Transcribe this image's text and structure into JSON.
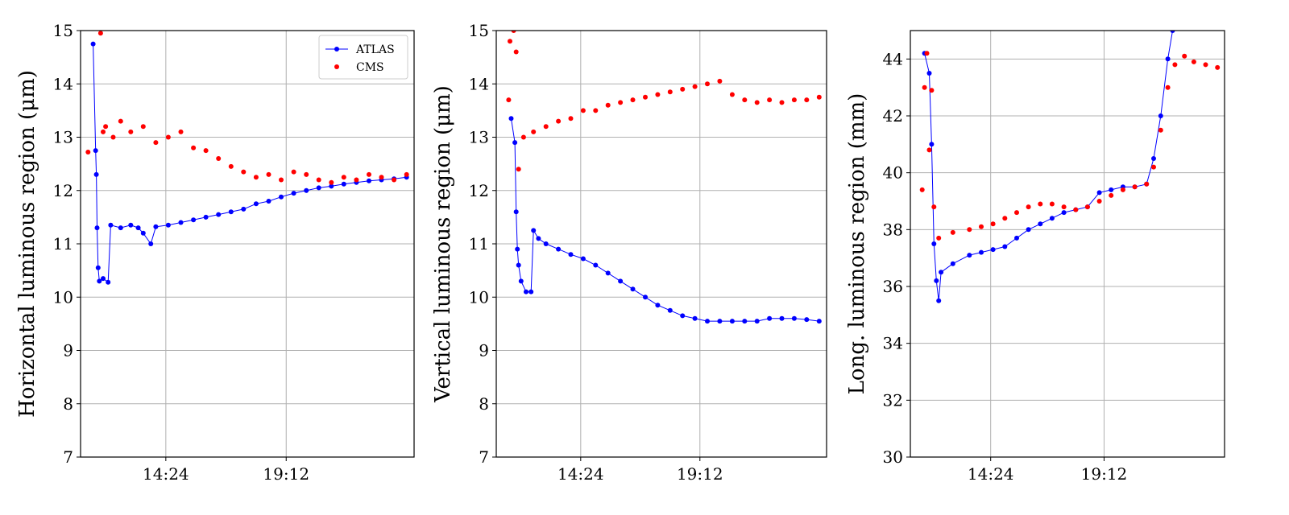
{
  "chart_data": [
    {
      "type": "scatter",
      "xlabel": "",
      "ylabel": "Horizontal luminous region (μm)",
      "ylim": [
        7,
        15
      ],
      "yticks": [
        "7",
        "8",
        "9",
        "10",
        "11",
        "12",
        "13",
        "14",
        "15"
      ],
      "xlim_hours": [
        11.0,
        24.3
      ],
      "xticks": [
        "14:24",
        "19:12"
      ],
      "grid": true,
      "legend_placement": "top-right",
      "series": [
        {
          "name": "ATLAS",
          "color": "#0000ff",
          "style": "line-with-markers",
          "points": [
            [
              11.5,
              14.75
            ],
            [
              11.6,
              12.75
            ],
            [
              11.63,
              12.3
            ],
            [
              11.66,
              11.3
            ],
            [
              11.7,
              10.55
            ],
            [
              11.75,
              10.3
            ],
            [
              11.9,
              10.35
            ],
            [
              12.1,
              10.28
            ],
            [
              12.2,
              11.35
            ],
            [
              12.6,
              11.3
            ],
            [
              13.0,
              11.35
            ],
            [
              13.3,
              11.3
            ],
            [
              13.5,
              11.2
            ],
            [
              13.8,
              11.0
            ],
            [
              14.0,
              11.32
            ],
            [
              14.5,
              11.35
            ],
            [
              15.0,
              11.4
            ],
            [
              15.5,
              11.45
            ],
            [
              16.0,
              11.5
            ],
            [
              16.5,
              11.55
            ],
            [
              17.0,
              11.6
            ],
            [
              17.5,
              11.65
            ],
            [
              18.0,
              11.75
            ],
            [
              18.5,
              11.8
            ],
            [
              19.0,
              11.88
            ],
            [
              19.5,
              11.95
            ],
            [
              20.0,
              12.0
            ],
            [
              20.5,
              12.05
            ],
            [
              21.0,
              12.08
            ],
            [
              21.5,
              12.12
            ],
            [
              22.0,
              12.15
            ],
            [
              22.5,
              12.18
            ],
            [
              23.0,
              12.2
            ],
            [
              23.5,
              12.22
            ],
            [
              24.0,
              12.25
            ]
          ]
        },
        {
          "name": "CMS",
          "color": "#ff0000",
          "style": "markers",
          "points": [
            [
              11.3,
              12.72
            ],
            [
              11.8,
              14.95
            ],
            [
              11.9,
              13.1
            ],
            [
              12.0,
              13.2
            ],
            [
              12.3,
              13.0
            ],
            [
              12.6,
              13.3
            ],
            [
              13.0,
              13.1
            ],
            [
              13.5,
              13.2
            ],
            [
              14.0,
              12.9
            ],
            [
              14.5,
              13.0
            ],
            [
              15.0,
              13.1
            ],
            [
              15.5,
              12.8
            ],
            [
              16.0,
              12.75
            ],
            [
              16.5,
              12.6
            ],
            [
              17.0,
              12.45
            ],
            [
              17.5,
              12.35
            ],
            [
              18.0,
              12.25
            ],
            [
              18.5,
              12.3
            ],
            [
              19.0,
              12.2
            ],
            [
              19.5,
              12.35
            ],
            [
              20.0,
              12.3
            ],
            [
              20.5,
              12.2
            ],
            [
              21.0,
              12.15
            ],
            [
              21.5,
              12.25
            ],
            [
              22.0,
              12.2
            ],
            [
              22.5,
              12.3
            ],
            [
              23.0,
              12.25
            ],
            [
              23.5,
              12.2
            ],
            [
              24.0,
              12.3
            ]
          ]
        }
      ]
    },
    {
      "type": "scatter",
      "xlabel": "",
      "ylabel": "Vertical luminous region (μm)",
      "ylim": [
        7,
        15
      ],
      "yticks": [
        "7",
        "8",
        "9",
        "10",
        "11",
        "12",
        "13",
        "14",
        "15"
      ],
      "xlim_hours": [
        11.0,
        24.3
      ],
      "xticks": [
        "14:24",
        "19:12"
      ],
      "grid": true,
      "series": [
        {
          "name": "ATLAS",
          "color": "#0000ff",
          "style": "line-with-markers",
          "points": [
            [
              11.6,
              13.35
            ],
            [
              11.75,
              12.9
            ],
            [
              11.8,
              11.6
            ],
            [
              11.85,
              10.9
            ],
            [
              11.9,
              10.6
            ],
            [
              12.0,
              10.3
            ],
            [
              12.2,
              10.1
            ],
            [
              12.4,
              10.1
            ],
            [
              12.5,
              11.25
            ],
            [
              12.7,
              11.1
            ],
            [
              13.0,
              11.0
            ],
            [
              13.5,
              10.9
            ],
            [
              14.0,
              10.8
            ],
            [
              14.5,
              10.72
            ],
            [
              15.0,
              10.6
            ],
            [
              15.5,
              10.45
            ],
            [
              16.0,
              10.3
            ],
            [
              16.5,
              10.15
            ],
            [
              17.0,
              10.0
            ],
            [
              17.5,
              9.85
            ],
            [
              18.0,
              9.75
            ],
            [
              18.5,
              9.65
            ],
            [
              19.0,
              9.6
            ],
            [
              19.5,
              9.55
            ],
            [
              20.0,
              9.55
            ],
            [
              20.5,
              9.55
            ],
            [
              21.0,
              9.55
            ],
            [
              21.5,
              9.55
            ],
            [
              22.0,
              9.6
            ],
            [
              22.5,
              9.6
            ],
            [
              23.0,
              9.6
            ],
            [
              23.5,
              9.58
            ],
            [
              24.0,
              9.55
            ]
          ]
        },
        {
          "name": "CMS",
          "color": "#ff0000",
          "style": "markers",
          "points": [
            [
              11.5,
              13.7
            ],
            [
              11.55,
              14.8
            ],
            [
              11.7,
              15.0
            ],
            [
              11.8,
              14.6
            ],
            [
              11.9,
              12.4
            ],
            [
              12.1,
              13.0
            ],
            [
              12.5,
              13.1
            ],
            [
              13.0,
              13.2
            ],
            [
              13.5,
              13.3
            ],
            [
              14.0,
              13.35
            ],
            [
              14.5,
              13.5
            ],
            [
              15.0,
              13.5
            ],
            [
              15.5,
              13.6
            ],
            [
              16.0,
              13.65
            ],
            [
              16.5,
              13.7
            ],
            [
              17.0,
              13.75
            ],
            [
              17.5,
              13.8
            ],
            [
              18.0,
              13.85
            ],
            [
              18.5,
              13.9
            ],
            [
              19.0,
              13.95
            ],
            [
              19.5,
              14.0
            ],
            [
              20.0,
              14.05
            ],
            [
              20.5,
              13.8
            ],
            [
              21.0,
              13.7
            ],
            [
              21.5,
              13.65
            ],
            [
              22.0,
              13.7
            ],
            [
              22.5,
              13.65
            ],
            [
              23.0,
              13.7
            ],
            [
              23.5,
              13.7
            ],
            [
              24.0,
              13.75
            ]
          ]
        }
      ]
    },
    {
      "type": "scatter",
      "xlabel": "",
      "ylabel": "Long. luminous region (mm)",
      "ylim": [
        30,
        45
      ],
      "yticks": [
        "30",
        "32",
        "34",
        "36",
        "38",
        "40",
        "42",
        "44"
      ],
      "xlim_hours": [
        11.0,
        24.3
      ],
      "xticks": [
        "14:24",
        "19:12"
      ],
      "grid": true,
      "series": [
        {
          "name": "ATLAS",
          "color": "#0000ff",
          "style": "line-with-markers",
          "points": [
            [
              11.6,
              44.2
            ],
            [
              11.8,
              43.5
            ],
            [
              11.9,
              41.0
            ],
            [
              12.0,
              37.5
            ],
            [
              12.1,
              36.2
            ],
            [
              12.2,
              35.5
            ],
            [
              12.3,
              36.5
            ],
            [
              12.8,
              36.8
            ],
            [
              13.5,
              37.1
            ],
            [
              14.0,
              37.2
            ],
            [
              14.5,
              37.3
            ],
            [
              15.0,
              37.4
            ],
            [
              15.5,
              37.7
            ],
            [
              16.0,
              38.0
            ],
            [
              16.5,
              38.2
            ],
            [
              17.0,
              38.4
            ],
            [
              17.5,
              38.6
            ],
            [
              18.0,
              38.7
            ],
            [
              18.5,
              38.8
            ],
            [
              19.0,
              39.3
            ],
            [
              19.5,
              39.4
            ],
            [
              20.0,
              39.5
            ],
            [
              20.5,
              39.5
            ],
            [
              21.0,
              39.6
            ],
            [
              21.3,
              40.5
            ],
            [
              21.6,
              42.0
            ],
            [
              21.9,
              44.0
            ],
            [
              22.1,
              45.0
            ],
            [
              23.0,
              45.1
            ],
            [
              24.0,
              45.1
            ]
          ]
        },
        {
          "name": "CMS",
          "color": "#ff0000",
          "style": "markers",
          "points": [
            [
              11.5,
              39.4
            ],
            [
              11.6,
              43.0
            ],
            [
              11.7,
              44.2
            ],
            [
              11.8,
              40.8
            ],
            [
              11.9,
              42.9
            ],
            [
              12.0,
              38.8
            ],
            [
              12.2,
              37.7
            ],
            [
              12.8,
              37.9
            ],
            [
              13.5,
              38.0
            ],
            [
              14.0,
              38.1
            ],
            [
              14.5,
              38.2
            ],
            [
              15.0,
              38.4
            ],
            [
              15.5,
              38.6
            ],
            [
              16.0,
              38.8
            ],
            [
              16.5,
              38.9
            ],
            [
              17.0,
              38.9
            ],
            [
              17.5,
              38.8
            ],
            [
              18.0,
              38.7
            ],
            [
              18.5,
              38.8
            ],
            [
              19.0,
              39.0
            ],
            [
              19.5,
              39.2
            ],
            [
              20.0,
              39.4
            ],
            [
              20.5,
              39.5
            ],
            [
              21.0,
              39.6
            ],
            [
              21.3,
              40.2
            ],
            [
              21.6,
              41.5
            ],
            [
              21.9,
              43.0
            ],
            [
              22.2,
              43.8
            ],
            [
              22.6,
              44.1
            ],
            [
              23.0,
              43.9
            ],
            [
              23.5,
              43.8
            ],
            [
              24.0,
              43.7
            ]
          ]
        }
      ]
    }
  ]
}
